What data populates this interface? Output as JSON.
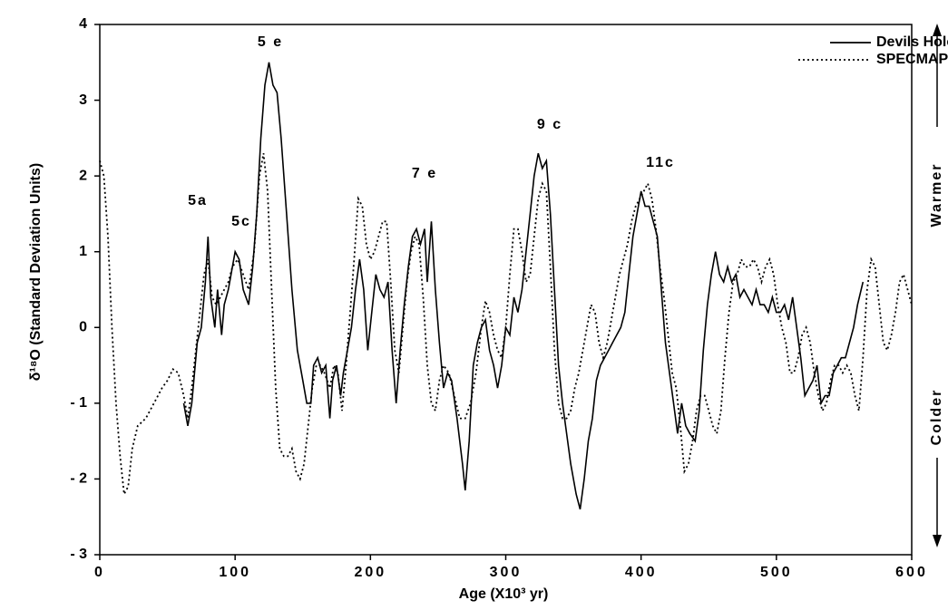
{
  "chart_data": {
    "type": "line",
    "ylabel": "δ¹⁸O    (Standard Deviation Units)",
    "xlabel": "Age    (X10³ yr)",
    "xlim": [
      0,
      600
    ],
    "xticks": [
      0,
      100,
      200,
      300,
      400,
      500,
      600
    ],
    "ylim": [
      -3,
      4
    ],
    "yticks": [
      {
        "value": -3,
        "label": "- 3"
      },
      {
        "value": -2,
        "label": "- 2"
      },
      {
        "value": -1,
        "label": "- 1"
      },
      0,
      1,
      2,
      3,
      4
    ],
    "legend": "upper right",
    "annotations": [
      "5 e",
      "5a",
      "5c",
      "7 e",
      "9 c",
      "11c",
      "Warmer",
      "Colder"
    ],
    "series": [
      {
        "name": "Devils Hole",
        "color": "#000000",
        "style": "solid",
        "x": [
          62,
          65,
          68,
          72,
          75,
          78,
          80,
          82,
          85,
          87,
          90,
          92,
          95,
          98,
          100,
          103,
          106,
          110,
          113,
          116,
          119,
          122,
          125,
          128,
          131,
          134,
          138,
          142,
          146,
          150,
          153,
          156,
          158,
          161,
          164,
          167,
          170,
          172,
          175,
          178,
          180,
          183,
          186,
          189,
          192,
          195,
          198,
          201,
          204,
          207,
          210,
          213,
          216,
          219,
          222,
          225,
          228,
          231,
          234,
          237,
          240,
          242,
          245,
          248,
          251,
          254,
          257,
          260,
          264,
          268,
          270,
          273,
          276,
          279,
          282,
          285,
          288,
          291,
          294,
          297,
          300,
          303,
          306,
          309,
          312,
          315,
          318,
          321,
          324,
          327,
          330,
          333,
          336,
          339,
          342,
          345,
          348,
          352,
          355,
          358,
          361,
          364,
          367,
          370,
          373,
          376,
          379,
          382,
          385,
          388,
          391,
          394,
          397,
          400,
          403,
          406,
          409,
          412,
          415,
          418,
          421,
          424,
          427,
          430,
          433,
          436,
          440,
          443,
          446,
          449,
          452,
          455,
          458,
          461,
          464,
          467,
          470,
          473,
          476,
          479,
          482,
          485,
          488,
          491,
          494,
          497,
          500,
          503,
          506,
          509,
          512,
          515,
          518,
          521,
          524,
          527,
          530,
          533,
          536,
          539,
          542,
          545,
          548,
          551,
          554,
          557,
          560,
          564
        ],
        "values": [
          -1.0,
          -1.3,
          -1.0,
          -0.2,
          0.0,
          0.6,
          1.2,
          0.4,
          0.0,
          0.5,
          -0.1,
          0.3,
          0.5,
          0.8,
          1.0,
          0.9,
          0.5,
          0.3,
          0.8,
          1.5,
          2.5,
          3.2,
          3.5,
          3.2,
          3.1,
          2.5,
          1.5,
          0.5,
          -0.3,
          -0.7,
          -1.0,
          -1.0,
          -0.5,
          -0.4,
          -0.6,
          -0.5,
          -1.2,
          -0.7,
          -0.5,
          -0.9,
          -0.6,
          -0.3,
          0.0,
          0.5,
          0.9,
          0.5,
          -0.3,
          0.2,
          0.7,
          0.5,
          0.4,
          0.6,
          -0.3,
          -1.0,
          -0.3,
          0.3,
          0.8,
          1.2,
          1.3,
          1.1,
          1.3,
          0.6,
          1.4,
          0.5,
          -0.2,
          -0.8,
          -0.6,
          -0.7,
          -1.2,
          -1.8,
          -2.15,
          -1.5,
          -0.5,
          -0.2,
          0.0,
          0.1,
          -0.3,
          -0.5,
          -0.8,
          -0.5,
          0.0,
          -0.1,
          0.4,
          0.2,
          0.5,
          1.0,
          1.5,
          2.0,
          2.3,
          2.1,
          2.2,
          1.5,
          0.5,
          -0.5,
          -1.0,
          -1.4,
          -1.8,
          -2.2,
          -2.4,
          -2.0,
          -1.5,
          -1.2,
          -0.7,
          -0.5,
          -0.4,
          -0.3,
          -0.2,
          -0.1,
          0.0,
          0.2,
          0.7,
          1.2,
          1.5,
          1.8,
          1.6,
          1.6,
          1.4,
          1.2,
          0.5,
          -0.2,
          -0.6,
          -1.0,
          -1.4,
          -1.0,
          -1.3,
          -1.4,
          -1.5,
          -1.1,
          -0.3,
          0.3,
          0.7,
          1.0,
          0.7,
          0.6,
          0.8,
          0.6,
          0.7,
          0.4,
          0.5,
          0.4,
          0.3,
          0.5,
          0.3,
          0.3,
          0.2,
          0.4,
          0.2,
          0.2,
          0.3,
          0.1,
          0.4,
          0.0,
          -0.4,
          -0.9,
          -0.8,
          -0.7,
          -0.5,
          -1.0,
          -0.9,
          -0.9,
          -0.6,
          -0.5,
          -0.4,
          -0.4,
          -0.2,
          0.0,
          0.3,
          0.6
        ]
      },
      {
        "name": "SPECMAP",
        "color": "#000000",
        "style": "dotted",
        "x": [
          0,
          3,
          6,
          9,
          12,
          15,
          18,
          21,
          24,
          28,
          34,
          40,
          46,
          50,
          54,
          58,
          62,
          65,
          68,
          71,
          74,
          77,
          80,
          83,
          86,
          89,
          92,
          95,
          98,
          102,
          106,
          110,
          114,
          118,
          121,
          124,
          127,
          130,
          133,
          136,
          139,
          142,
          145,
          148,
          151,
          154,
          157,
          160,
          163,
          166,
          170,
          173,
          176,
          179,
          182,
          185,
          188,
          191,
          194,
          197,
          200,
          203,
          206,
          209,
          212,
          215,
          218,
          221,
          224,
          227,
          230,
          233,
          236,
          239,
          242,
          245,
          248,
          251,
          254,
          258,
          262,
          266,
          270,
          274,
          278,
          282,
          285,
          288,
          291,
          294,
          297,
          300,
          303,
          306,
          309,
          312,
          315,
          318,
          321,
          324,
          327,
          330,
          333,
          336,
          339,
          342,
          345,
          348,
          351,
          354,
          357,
          360,
          363,
          366,
          369,
          372,
          375,
          378,
          381,
          384,
          387,
          390,
          393,
          396,
          399,
          402,
          405,
          408,
          411,
          414,
          417,
          420,
          423,
          426,
          429,
          432,
          435,
          438,
          441,
          444,
          447,
          450,
          453,
          456,
          459,
          462,
          465,
          468,
          471,
          474,
          477,
          480,
          483,
          486,
          489,
          492,
          495,
          498,
          501,
          504,
          507,
          510,
          513,
          516,
          519,
          522,
          525,
          528,
          531,
          534,
          537,
          540,
          543,
          546,
          549,
          552,
          555,
          558,
          561,
          564,
          567,
          570,
          573,
          576,
          579,
          582,
          585,
          588,
          591,
          594,
          597,
          600
        ],
        "values": [
          2.2,
          2.0,
          1.2,
          0.0,
          -1.0,
          -1.7,
          -2.2,
          -2.1,
          -1.6,
          -1.3,
          -1.2,
          -1.0,
          -0.8,
          -0.7,
          -0.55,
          -0.6,
          -0.9,
          -1.2,
          -0.8,
          -0.3,
          0.2,
          0.7,
          0.9,
          0.4,
          0.3,
          0.4,
          0.5,
          0.6,
          0.8,
          0.9,
          0.7,
          0.5,
          1.0,
          2.0,
          2.3,
          1.8,
          0.5,
          -0.8,
          -1.6,
          -1.7,
          -1.7,
          -1.6,
          -1.9,
          -2.0,
          -1.8,
          -1.3,
          -0.8,
          -0.5,
          -0.5,
          -0.6,
          -0.8,
          -0.5,
          -0.6,
          -1.1,
          -0.5,
          0.2,
          0.9,
          1.7,
          1.6,
          1.1,
          0.9,
          1.0,
          1.2,
          1.4,
          1.4,
          0.6,
          -0.3,
          -0.6,
          0.0,
          0.6,
          1.0,
          1.2,
          1.1,
          0.4,
          -0.5,
          -1.0,
          -1.1,
          -0.7,
          -0.5,
          -0.6,
          -0.9,
          -1.2,
          -1.2,
          -1.0,
          -0.6,
          0.0,
          0.35,
          0.2,
          -0.1,
          -0.3,
          -0.4,
          0.0,
          0.7,
          1.3,
          1.3,
          1.0,
          0.6,
          0.7,
          1.2,
          1.7,
          1.9,
          1.8,
          0.8,
          -0.3,
          -1.0,
          -1.2,
          -1.2,
          -1.1,
          -0.8,
          -0.6,
          -0.3,
          0.0,
          0.3,
          0.2,
          -0.2,
          -0.4,
          -0.2,
          0.1,
          0.4,
          0.7,
          0.9,
          1.1,
          1.4,
          1.6,
          1.7,
          1.8,
          1.9,
          1.7,
          1.3,
          0.8,
          0.4,
          -0.1,
          -0.6,
          -0.8,
          -1.3,
          -1.9,
          -1.8,
          -1.5,
          -1.1,
          -0.9,
          -0.9,
          -1.1,
          -1.3,
          -1.4,
          -1.1,
          -0.4,
          0.2,
          0.6,
          0.7,
          0.9,
          0.8,
          0.8,
          0.9,
          0.8,
          0.6,
          0.8,
          0.9,
          0.7,
          0.3,
          0.0,
          -0.2,
          -0.6,
          -0.6,
          -0.4,
          -0.1,
          0.0,
          -0.2,
          -0.6,
          -0.9,
          -1.1,
          -1.0,
          -0.7,
          -0.5,
          -0.5,
          -0.6,
          -0.5,
          -0.6,
          -0.9,
          -1.1,
          -0.4,
          0.5,
          0.9,
          0.8,
          0.3,
          -0.2,
          -0.3,
          -0.1,
          0.2,
          0.6,
          0.7,
          0.5,
          0.3
        ]
      }
    ]
  }
}
